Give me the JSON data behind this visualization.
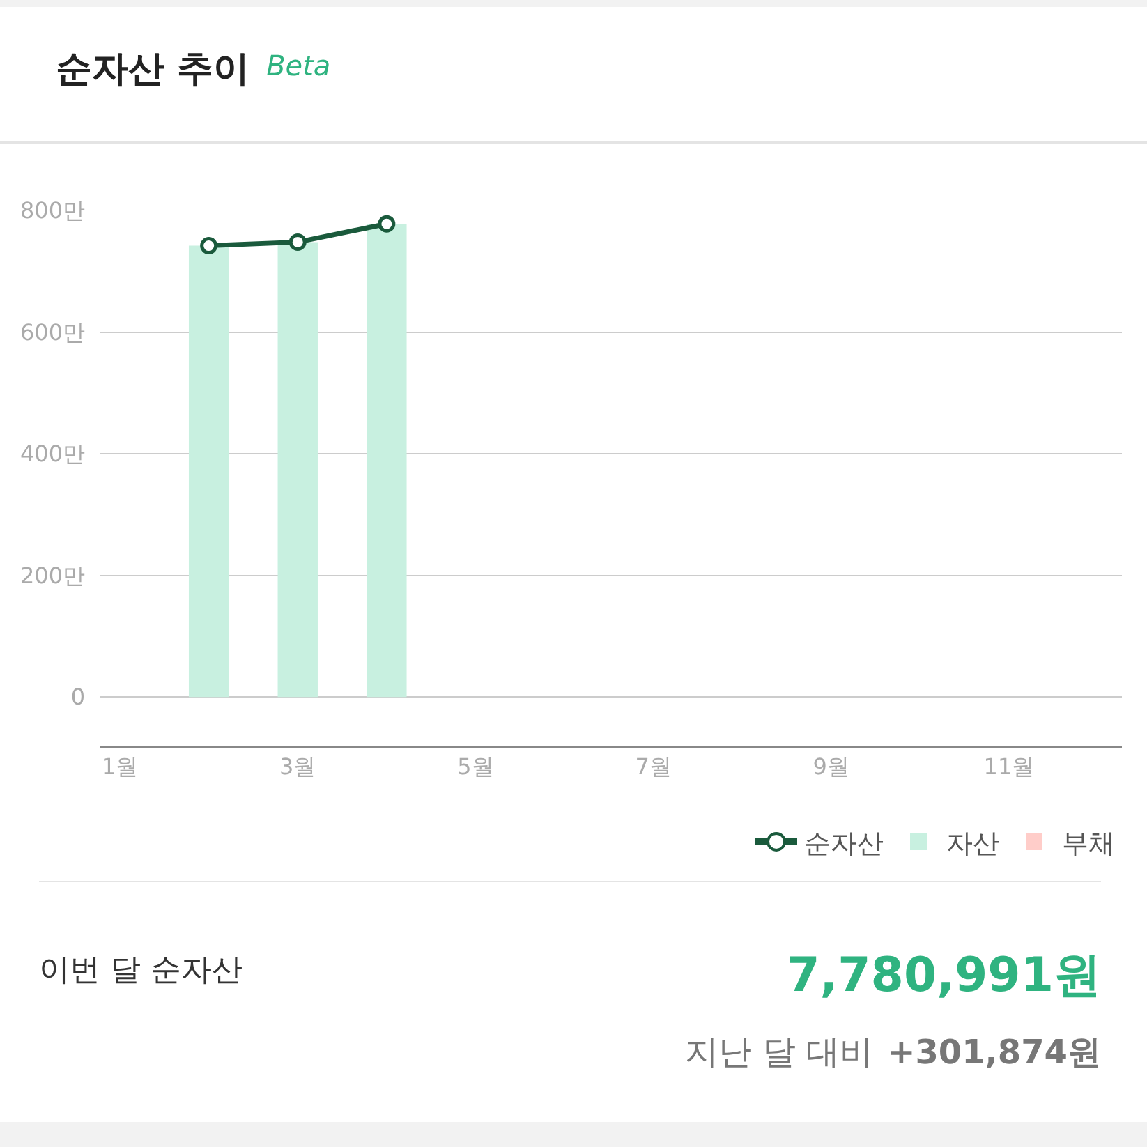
{
  "chart_data": {
    "type": "bar",
    "title": "순자산 추이",
    "subtitle": "Beta",
    "categories": [
      "1월",
      null,
      "3월",
      null,
      "5월",
      null,
      "7월",
      null,
      "9월",
      null,
      "11월",
      null
    ],
    "series": [
      {
        "name": "순자산",
        "type": "line",
        "color": "#1a5a3c",
        "values": [
          null,
          742,
          748,
          778,
          null,
          null,
          null,
          null,
          null,
          null,
          null,
          null
        ]
      },
      {
        "name": "자산",
        "type": "bar",
        "color": "#c8f0e0",
        "values": [
          null,
          742,
          748,
          778,
          null,
          null,
          null,
          null,
          null,
          null,
          null,
          null
        ]
      },
      {
        "name": "부채",
        "type": "bar",
        "color": "#ffcdc9",
        "values": [
          null,
          null,
          null,
          null,
          null,
          null,
          null,
          null,
          null,
          null,
          null,
          null
        ]
      }
    ],
    "ylim": [
      -80,
      800
    ],
    "yticks": [
      0,
      {
        "value": 200,
        "label": "200만"
      },
      {
        "value": 400,
        "label": "400만"
      },
      {
        "value": 600,
        "label": "600만"
      },
      {
        "value": 800,
        "label": "800만"
      }
    ],
    "grid": "y",
    "legend": "bottom right",
    "marker": "circle",
    "annotations": [
      "이번 달 순자산",
      "7,780,991원",
      "지난 달 대비",
      "+301,874원"
    ]
  }
}
